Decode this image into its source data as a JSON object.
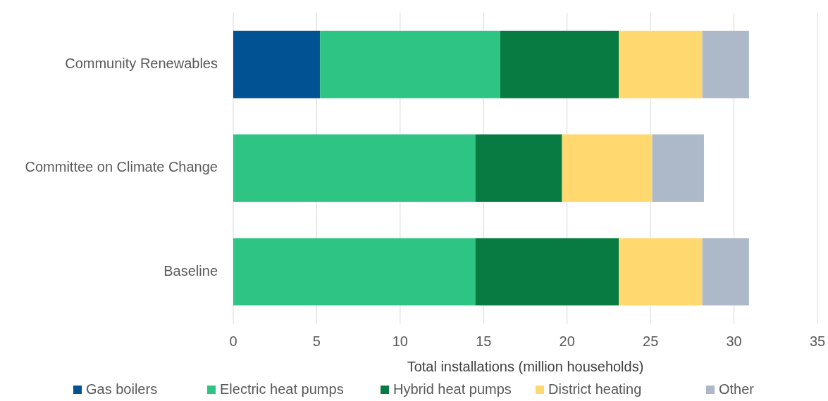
{
  "chart_data": {
    "type": "bar",
    "orientation": "horizontal",
    "stacked": true,
    "categories": [
      "Community Renewables",
      "Committee on Climate Change",
      "Baseline"
    ],
    "series": [
      {
        "name": "Gas boilers",
        "color": "#005293",
        "values": [
          5.2,
          null,
          null
        ]
      },
      {
        "name": "Electric heat pumps",
        "color": "#2ec584",
        "values": [
          10.8,
          14.5,
          14.5
        ]
      },
      {
        "name": "Hybrid heat pumps",
        "color": "#087b43",
        "values": [
          7.1,
          5.2,
          8.6
        ]
      },
      {
        "name": "District heating",
        "color": "#ffd86f",
        "values": [
          5.0,
          5.4,
          5.0
        ]
      },
      {
        "name": "Other",
        "color": "#adb9c8",
        "values": [
          2.8,
          3.1,
          2.8
        ]
      }
    ],
    "xlabel": "Total installations (million households)",
    "xlim": [
      0,
      35
    ],
    "xticks": [
      0,
      5,
      10,
      15,
      20,
      25,
      30,
      35
    ],
    "grid": "x",
    "legend": "bottom"
  }
}
